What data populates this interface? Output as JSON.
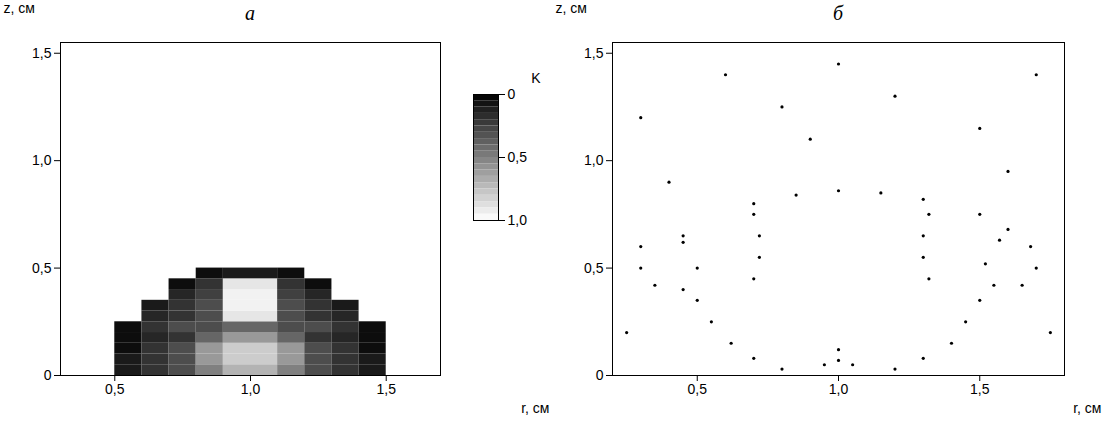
{
  "chart_data": [
    {
      "type": "heatmap",
      "title": "а",
      "x_label": "r, см",
      "y_label": "z, см",
      "xlim": [
        0.3,
        1.7
      ],
      "ylim": [
        0,
        1.55
      ],
      "xticks": [
        {
          "value": 0.5,
          "label": "0,5"
        },
        {
          "value": 1,
          "label": "1,0"
        },
        {
          "value": 1.5,
          "label": "1,5"
        }
      ],
      "yticks": [
        0,
        {
          "value": 0.5,
          "label": "0,5"
        },
        {
          "value": 1,
          "label": "1,0"
        },
        {
          "value": 1.5,
          "label": "1,5"
        }
      ],
      "cells": {
        "x_edges": [
          0.5,
          0.6,
          0.7,
          0.8,
          0.9,
          1.0,
          1.1,
          1.2,
          1.3,
          1.4,
          1.5
        ],
        "y_edges": [
          0,
          0.05,
          0.1,
          0.15,
          0.2,
          0.25,
          0.3,
          0.35,
          0.4,
          0.45,
          0.5
        ],
        "values": [
          [
            0.1,
            0.2,
            0.3,
            0.5,
            0.7,
            0.7,
            0.5,
            0.3,
            0.2,
            0.1
          ],
          [
            0.1,
            0.2,
            0.3,
            0.6,
            0.8,
            0.8,
            0.6,
            0.3,
            0.2,
            0.1
          ],
          [
            0.05,
            0.2,
            0.3,
            0.6,
            0.8,
            0.8,
            0.6,
            0.3,
            0.2,
            0.05
          ],
          [
            0.05,
            0.15,
            0.2,
            0.4,
            0.6,
            0.6,
            0.4,
            0.2,
            0.15,
            0.05
          ],
          [
            0.05,
            0.2,
            0.3,
            0.3,
            0.4,
            0.4,
            0.3,
            0.3,
            0.2,
            0.05
          ],
          [
            null,
            0.15,
            0.2,
            0.3,
            0.9,
            0.9,
            0.3,
            0.2,
            0.15,
            null
          ],
          [
            null,
            0.1,
            0.2,
            0.3,
            0.95,
            0.95,
            0.3,
            0.2,
            0.1,
            null
          ],
          [
            null,
            null,
            0.15,
            0.25,
            0.95,
            0.95,
            0.25,
            0.15,
            null,
            null
          ],
          [
            null,
            null,
            0.05,
            0.2,
            0.9,
            0.9,
            0.2,
            0.05,
            null,
            null
          ],
          [
            null,
            null,
            null,
            0.05,
            0.1,
            0.1,
            0.05,
            null,
            null,
            null
          ]
        ]
      },
      "colorbar": {
        "label": "K",
        "range": [
          0,
          1
        ],
        "ticks": [
          0,
          {
            "value": 0.5,
            "label": "0,5"
          },
          {
            "value": 1,
            "label": "1,0"
          }
        ]
      }
    },
    {
      "type": "scatter",
      "title": "б",
      "x_label": "r, см",
      "y_label": "z, см",
      "xlim": [
        0.2,
        1.8
      ],
      "ylim": [
        0,
        1.55
      ],
      "xticks": [
        {
          "value": 0.5,
          "label": "0,5"
        },
        {
          "value": 1,
          "label": "1,0"
        },
        {
          "value": 1.5,
          "label": "1,5"
        }
      ],
      "yticks": [
        0,
        {
          "value": 0.5,
          "label": "0,5"
        },
        {
          "value": 1,
          "label": "1,0"
        },
        {
          "value": 1.5,
          "label": "1,5"
        }
      ],
      "color": "#000000",
      "x": [
        0.45,
        0.7,
        0.85,
        1.0,
        1.15,
        1.3,
        1.5,
        1.6,
        0.3,
        0.3,
        0.35,
        0.45,
        0.5,
        0.45,
        1.68,
        1.7,
        1.65,
        1.55,
        1.52,
        1.57,
        0.7,
        0.72,
        0.72,
        0.7,
        1.32,
        1.3,
        1.3,
        1.32,
        0.5,
        0.55,
        0.62,
        0.7,
        0.8,
        1.5,
        1.45,
        1.4,
        1.3,
        1.2,
        0.95,
        1.0,
        1.05,
        1.0,
        0.3,
        0.6,
        0.9,
        1.2,
        1.5,
        1.7,
        0.4,
        1.6,
        1.0,
        0.25,
        1.75,
        0.8
      ],
      "y": [
        0.65,
        0.8,
        0.84,
        0.86,
        0.85,
        0.82,
        0.75,
        0.68,
        0.6,
        0.5,
        0.42,
        0.4,
        0.5,
        0.62,
        0.6,
        0.5,
        0.42,
        0.42,
        0.52,
        0.63,
        0.75,
        0.65,
        0.55,
        0.45,
        0.75,
        0.65,
        0.55,
        0.45,
        0.35,
        0.25,
        0.15,
        0.08,
        0.03,
        0.35,
        0.25,
        0.15,
        0.08,
        0.03,
        0.05,
        0.07,
        0.05,
        0.12,
        1.2,
        1.4,
        1.1,
        1.3,
        1.15,
        1.4,
        0.9,
        0.95,
        1.45,
        0.2,
        0.2,
        1.25
      ]
    }
  ]
}
